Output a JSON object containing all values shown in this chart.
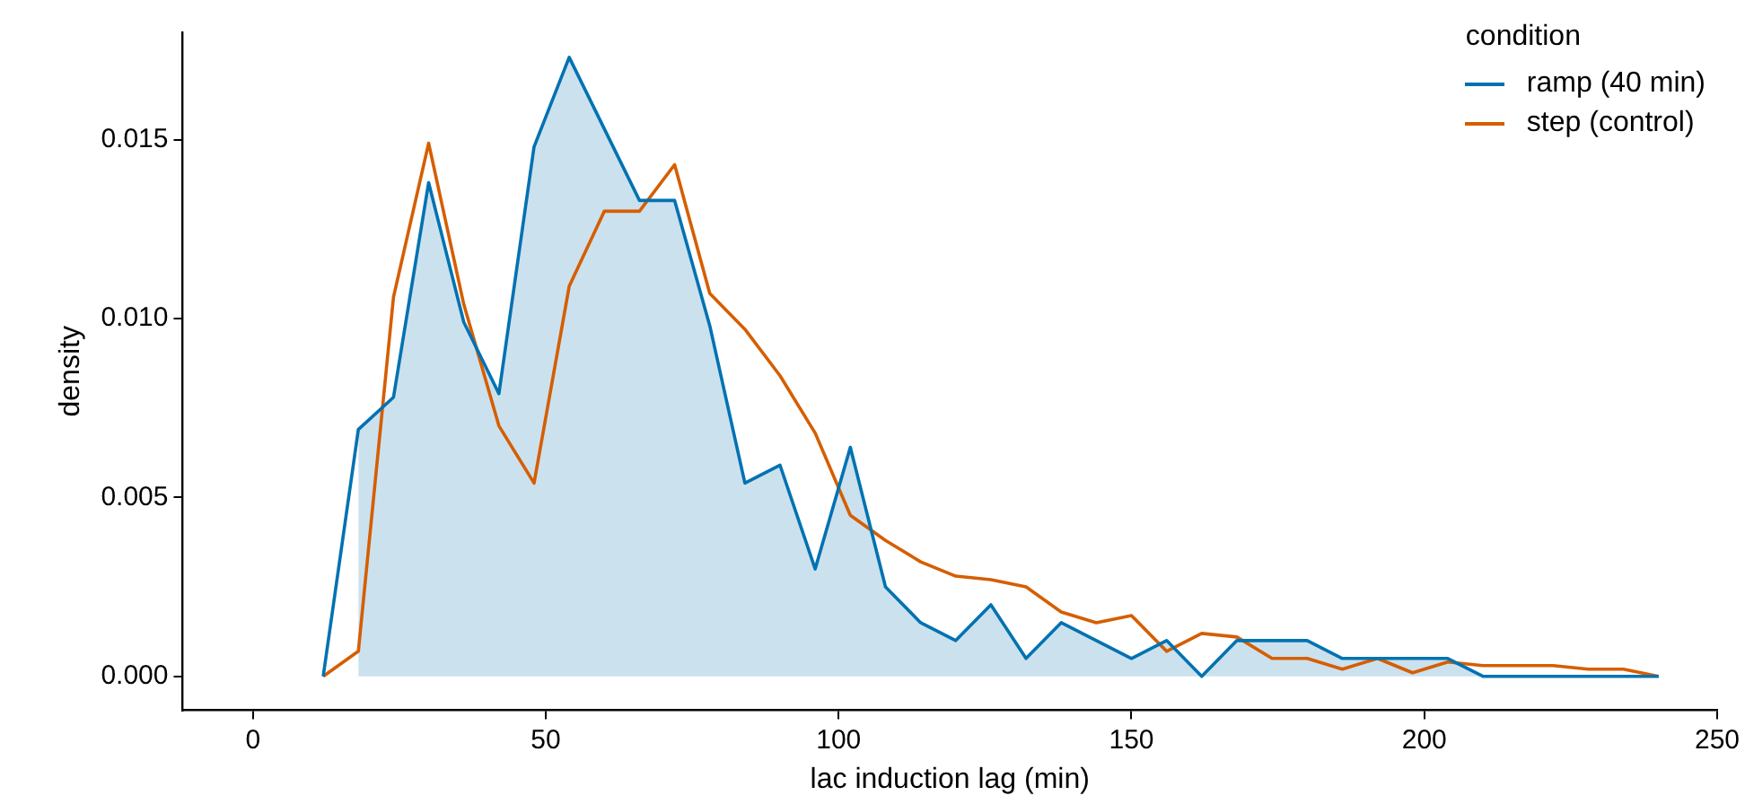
{
  "chart_data": {
    "type": "line",
    "xlabel": "lac induction lag (min)",
    "ylabel": "density",
    "legend_title": "condition",
    "legend": "top right",
    "xlim": [
      -12,
      250
    ],
    "xticks": [
      0,
      50,
      100,
      150,
      200,
      250
    ],
    "ylim": [
      -0.00095,
      0.018
    ],
    "yticks": [
      {
        "value": 0,
        "label": "0.000"
      },
      0.005,
      {
        "value": 0.01,
        "label": "0.010"
      },
      0.015
    ],
    "series": [
      {
        "type": "area",
        "color": "#cce1ee",
        "x": [
          18,
          24,
          30,
          36,
          42,
          48,
          54,
          60,
          66,
          72,
          78,
          84,
          90,
          96,
          102,
          108,
          114,
          120,
          126,
          132,
          138,
          144,
          150,
          156,
          162,
          168,
          174,
          180,
          186,
          192,
          198,
          204,
          210,
          216,
          222,
          228,
          234,
          240
        ],
        "values": [
          0.0069,
          0.0078,
          0.0138,
          0.0099,
          0.0079,
          0.0148,
          0.0173,
          0.0153,
          0.0133,
          0.0133,
          0.0098,
          0.0054,
          0.0059,
          0.003,
          0.0064,
          0.0025,
          0.0015,
          0.001,
          0.002,
          0.0005,
          0.0015,
          0.001,
          0.0005,
          0.001,
          0,
          0.001,
          0.001,
          0.001,
          0.0005,
          0.0005,
          0.0005,
          0.0005,
          0,
          0,
          0,
          0,
          0,
          0
        ]
      },
      {
        "name": "ramp (40 min)",
        "color": "#0072b2",
        "x": [
          12,
          18,
          24,
          30,
          36,
          42,
          48,
          54,
          60,
          66,
          72,
          78,
          84,
          90,
          96,
          102,
          108,
          114,
          120,
          126,
          132,
          138,
          144,
          150,
          156,
          162,
          168,
          174,
          180,
          186,
          192,
          198,
          204,
          210,
          216,
          222,
          228,
          234,
          240
        ],
        "values": [
          0,
          0.0069,
          0.0078,
          0.0138,
          0.0099,
          0.0079,
          0.0148,
          0.0173,
          0.0153,
          0.0133,
          0.0133,
          0.0098,
          0.0054,
          0.0059,
          0.003,
          0.0064,
          0.0025,
          0.0015,
          0.001,
          0.002,
          0.0005,
          0.0015,
          0.001,
          0.0005,
          0.001,
          0,
          0.001,
          0.001,
          0.001,
          0.0005,
          0.0005,
          0.0005,
          0.0005,
          0,
          0,
          0,
          0,
          0,
          0
        ]
      },
      {
        "name": "step (control)",
        "color": "#d55e00",
        "x": [
          12,
          18,
          24,
          30,
          36,
          42,
          48,
          54,
          60,
          66,
          72,
          78,
          84,
          90,
          96,
          102,
          108,
          114,
          120,
          126,
          132,
          138,
          144,
          150,
          156,
          162,
          168,
          174,
          180,
          186,
          192,
          198,
          204,
          210,
          216,
          222,
          228,
          234,
          240
        ],
        "values": [
          0,
          0.0007,
          0.0106,
          0.0149,
          0.0104,
          0.007,
          0.0054,
          0.0109,
          0.013,
          0.013,
          0.0143,
          0.0107,
          0.0097,
          0.0084,
          0.0068,
          0.0045,
          0.0038,
          0.0032,
          0.0028,
          0.0027,
          0.0025,
          0.0018,
          0.0015,
          0.0017,
          0.0007,
          0.0012,
          0.0011,
          0.0005,
          0.0005,
          0.0002,
          0.0005,
          0.0001,
          0.0004,
          0.0003,
          0.0003,
          0.0003,
          0.0002,
          0.0002,
          0
        ]
      }
    ]
  }
}
